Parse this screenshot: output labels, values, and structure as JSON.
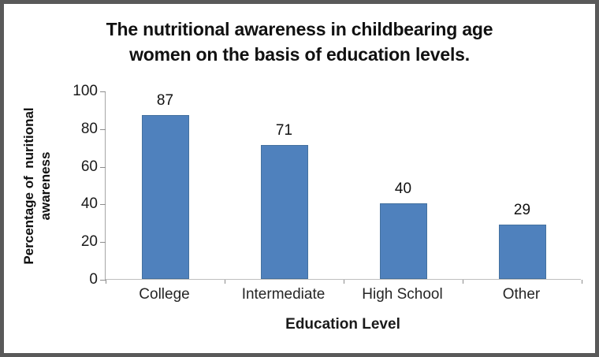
{
  "frame": {
    "border_color": "#595959",
    "background_color": "#ffffff"
  },
  "chart_data": {
    "type": "bar",
    "title": "The nutritional awareness in childbearing age\nwomen on the basis of education levels.",
    "categories": [
      "College",
      "Intermediate",
      "High School",
      "Other"
    ],
    "values": [
      87,
      71,
      40,
      29
    ],
    "data_labels": [
      "87",
      "71",
      "40",
      "29"
    ],
    "xlabel": "Education Level",
    "ylabel": "Percentage of  nuritional\nawareness",
    "ylim": [
      0,
      100
    ],
    "yticks": [
      0,
      20,
      40,
      60,
      80,
      100
    ],
    "grid": "off",
    "legend": "none",
    "bar_color": "#4f81bd",
    "bar_border_color": "#44719f",
    "axis_color": "#a6a6a6",
    "tick_color": "#8c8c8c"
  }
}
